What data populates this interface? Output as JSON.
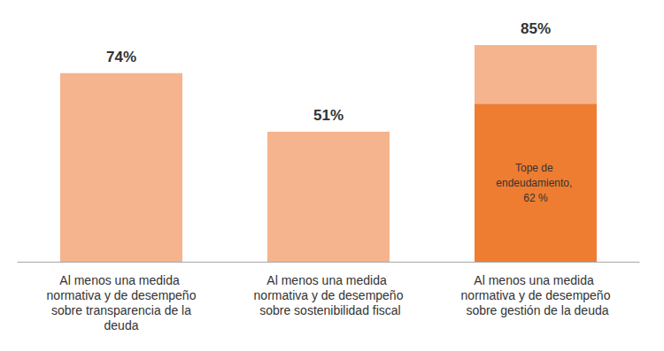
{
  "chart_data": {
    "type": "bar",
    "categories": [
      "Al menos una medida normativa y de desempeño sobre transparencia de la deuda",
      "Al menos una medida normativa y de desempeño sobre sostenibilidad fiscal",
      "Al menos una medida normativa y de desempeño sobre gestión de la deuda"
    ],
    "stacked": true,
    "series": [
      {
        "color": "#ee7d31",
        "values": [
          null,
          null,
          62
        ],
        "value_labels": [
          null,
          null,
          "Tope de endeudamiento, 62 %"
        ]
      },
      {
        "color": "#f5b48d",
        "values": [
          74,
          51,
          23
        ]
      }
    ],
    "totals": [
      74,
      51,
      85
    ],
    "total_labels": [
      "74%",
      "51%",
      "85%"
    ],
    "data_labels": true,
    "ylim": [
      0,
      85
    ],
    "grid": false,
    "tick_labels": "x"
  }
}
